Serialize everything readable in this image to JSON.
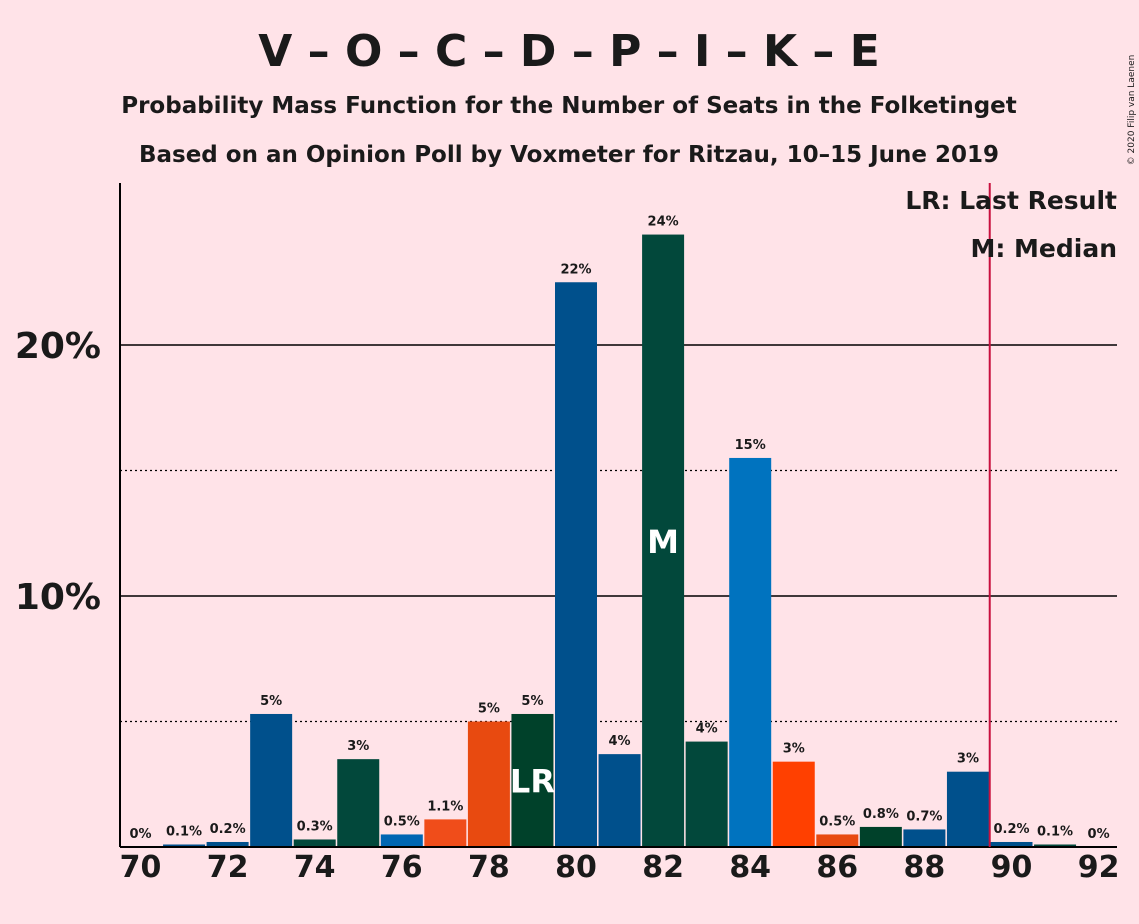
{
  "header": {
    "title": "V – O – C – D – P – I – K – E",
    "subtitle1": "Probability Mass Function for the Number of Seats in the Folketinget",
    "subtitle2": "Based on an Opinion Poll by Voxmeter for Ritzau, 10–15 June 2019",
    "copyright": "© 2020 Filip van Laenen"
  },
  "legend": {
    "lr": "LR: Last Result",
    "m": "M: Median"
  },
  "chart_data": {
    "type": "bar",
    "x": [
      70,
      71,
      72,
      73,
      74,
      75,
      76,
      77,
      78,
      79,
      80,
      81,
      82,
      83,
      84,
      85,
      86,
      87,
      88,
      89,
      90,
      91,
      92
    ],
    "values": [
      0,
      0.1,
      0.2,
      5.3,
      0.3,
      3.5,
      0.5,
      1.1,
      5.0,
      5.3,
      22.5,
      3.7,
      24.4,
      4.2,
      15.5,
      3.4,
      0.5,
      0.8,
      0.7,
      3.0,
      0.2,
      0.1,
      0
    ],
    "labels": [
      "0%",
      "0.1%",
      "0.2%",
      "5%",
      "0.3%",
      "3%",
      "0.5%",
      "1.1%",
      "5%",
      "5%",
      "22%",
      "4%",
      "24%",
      "4%",
      "15%",
      "3%",
      "0.5%",
      "0.8%",
      "0.7%",
      "3%",
      "0.2%",
      "0.1%",
      "0%"
    ],
    "colors": [
      "#00508C",
      "#00508C",
      "#00508C",
      "#00508C",
      "#02483B",
      "#02483B",
      "#0066B3",
      "#F04D1A",
      "#E84A10",
      "#00412A",
      "#00508C",
      "#00508C",
      "#02483B",
      "#02483B",
      "#0073BF",
      "#FF4000",
      "#E84A10",
      "#00412A",
      "#00508C",
      "#00508C",
      "#00508C",
      "#02483B",
      "#0066B3"
    ],
    "x_ticks": [
      "70",
      "72",
      "74",
      "76",
      "78",
      "80",
      "82",
      "84",
      "86",
      "88",
      "90",
      "92"
    ],
    "y_ticks": [
      {
        "value": 10,
        "label": "10%"
      },
      {
        "value": 20,
        "label": "20%"
      }
    ],
    "dotted_gridlines": [
      5,
      15
    ],
    "ylim": [
      0,
      26.5
    ],
    "last_result": {
      "x": 79,
      "label": "LR"
    },
    "median": {
      "x": 82,
      "label": "M"
    },
    "majority_line_x": 89.5,
    "majority_color": "#C8103E",
    "legend_position": "top-right"
  }
}
